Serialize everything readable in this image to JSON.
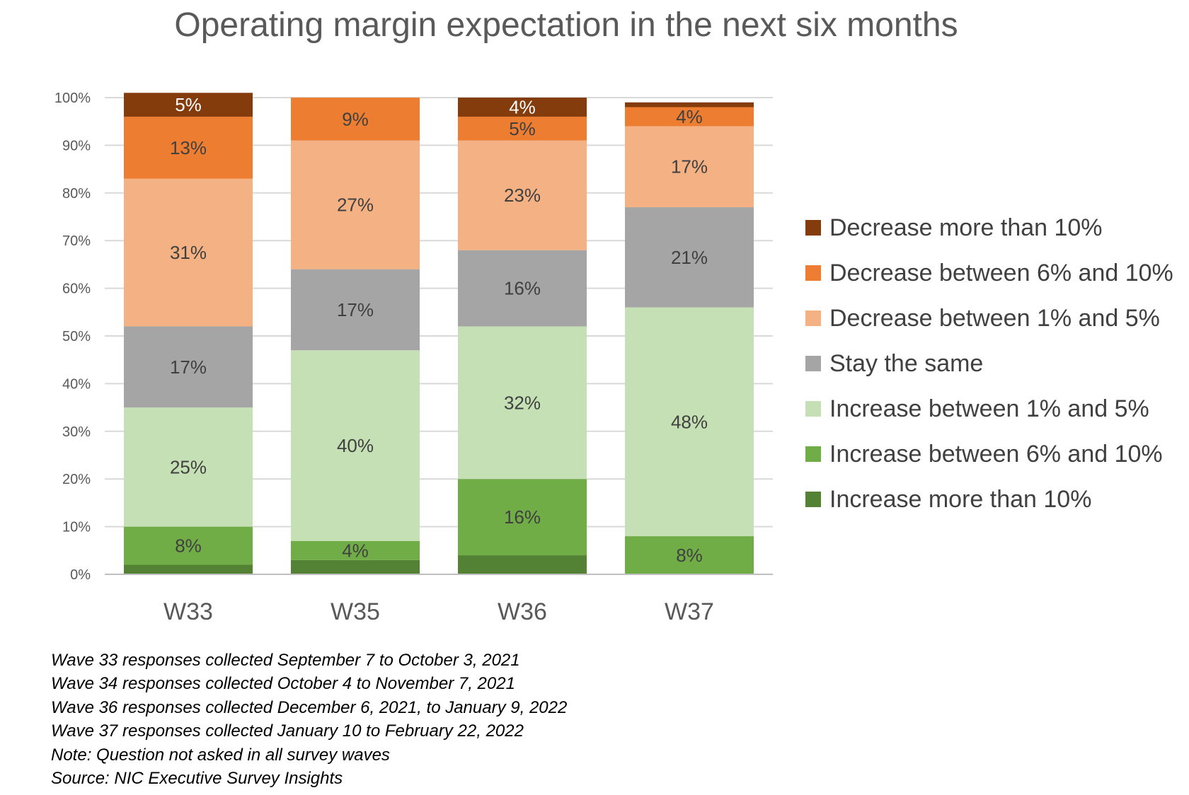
{
  "title": "Operating margin expectation in the next six months",
  "chart_data": {
    "type": "bar",
    "stacked": true,
    "categories": [
      "W33",
      "W35",
      "W36",
      "W37"
    ],
    "ylim": [
      0,
      100
    ],
    "y_ticks": [
      0,
      10,
      20,
      30,
      40,
      50,
      60,
      70,
      80,
      90,
      100
    ],
    "y_tick_labels": [
      "0%",
      "10%",
      "20%",
      "30%",
      "40%",
      "50%",
      "60%",
      "70%",
      "80%",
      "90%",
      "100%"
    ],
    "grid": true,
    "legend_position": "right",
    "series": [
      {
        "name": "Increase more than 10%",
        "color": "#548235",
        "values": [
          2,
          3,
          4,
          0
        ],
        "labels": [
          "",
          "",
          "",
          ""
        ]
      },
      {
        "name": "Increase between 6% and 10%",
        "color": "#70AD47",
        "values": [
          8,
          4,
          16,
          8
        ],
        "labels": [
          "8%",
          "4%",
          "16%",
          "8%"
        ]
      },
      {
        "name": "Increase between 1% and 5%",
        "color": "#C5E0B4",
        "values": [
          25,
          40,
          32,
          48
        ],
        "labels": [
          "25%",
          "40%",
          "32%",
          "48%"
        ]
      },
      {
        "name": "Stay the same",
        "color": "#A5A5A5",
        "values": [
          17,
          17,
          16,
          21
        ],
        "labels": [
          "17%",
          "17%",
          "16%",
          "21%"
        ]
      },
      {
        "name": "Decrease between 1% and 5%",
        "color": "#F4B183",
        "values": [
          31,
          27,
          23,
          17
        ],
        "labels": [
          "31%",
          "27%",
          "23%",
          "17%"
        ]
      },
      {
        "name": "Decrease between 6% and 10%",
        "color": "#ED7D31",
        "values": [
          13,
          9,
          5,
          4
        ],
        "labels": [
          "13%",
          "9%",
          "5%",
          "4%"
        ]
      },
      {
        "name": "Decrease more than 10%",
        "color": "#843C0C",
        "values": [
          5,
          0,
          4,
          1
        ],
        "labels": [
          "5%",
          "",
          "4%",
          ""
        ]
      }
    ]
  },
  "legend": [
    {
      "label": "Decrease more than 10%",
      "color": "#843C0C"
    },
    {
      "label": "Decrease between 6% and 10%",
      "color": "#ED7D31"
    },
    {
      "label": "Decrease between 1% and 5%",
      "color": "#F4B183"
    },
    {
      "label": "Stay the same",
      "color": "#A5A5A5"
    },
    {
      "label": "Increase between 1% and 5%",
      "color": "#C5E0B4"
    },
    {
      "label": "Increase between 6% and 10%",
      "color": "#70AD47"
    },
    {
      "label": "Increase more than 10%",
      "color": "#548235"
    }
  ],
  "notes": [
    "Wave 33 responses collected September 7 to October 3, 2021",
    "Wave 34 responses collected October 4 to November 7, 2021",
    "Wave 36 responses collected December 6, 2021, to January 9, 2022",
    "Wave 37 responses collected January 10 to February 22, 2022",
    "Note: Question not asked in all survey waves",
    "Source: NIC Executive Survey Insights"
  ]
}
